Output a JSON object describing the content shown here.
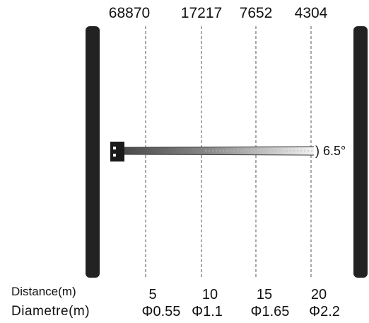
{
  "top_values": [
    "68870",
    "17217",
    "7652",
    "4304"
  ],
  "distance_row": {
    "label": "Distance(m)",
    "values": [
      "5",
      "10",
      "15",
      "20"
    ]
  },
  "diameter_row": {
    "label": "Diametre(m)",
    "values": [
      "Φ0.55",
      "Φ1.1",
      "Φ1.65",
      "Φ2.2"
    ]
  },
  "beam": {
    "angle_label": ") 6.5°"
  },
  "colors": {
    "frame": "#222222",
    "gridline": "#555555",
    "beam_dark": "#555555",
    "beam_light": "#e8e8e8"
  }
}
